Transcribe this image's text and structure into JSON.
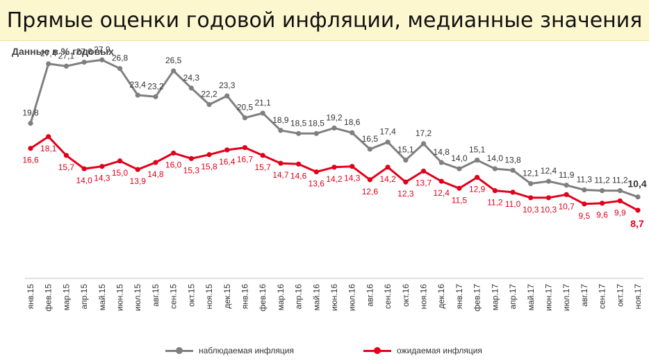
{
  "title": "Прямые оценки годовой инфляции, медианные значения",
  "units_label": "Данные в % годовых",
  "colors": {
    "observed": "#7f7f7f",
    "expected": "#e1001a",
    "axis": "#bfbfbf",
    "title_bg": "#fdf7cf"
  },
  "legend": {
    "observed": "наблюдаемая инфляция",
    "expected": "ожидаемая инфляция"
  },
  "chart_data": {
    "type": "line",
    "legend_position": "bottom",
    "grid": false,
    "ylim": [
      0,
      32
    ],
    "categories": [
      "янв.15",
      "фев.15",
      "мар.15",
      "апр.15",
      "май.15",
      "июн.15",
      "июл.15",
      "авг.15",
      "сен.15",
      "окт.15",
      "ноя.15",
      "дек.15",
      "янв.16",
      "фев.16",
      "мар.16",
      "апр.16",
      "май.16",
      "июн.16",
      "июл.16",
      "авг.16",
      "сен.16",
      "окт.16",
      "ноя.16",
      "дек.16",
      "янв.17",
      "фев.17",
      "мар.17",
      "апр.17",
      "май.17",
      "июн.17",
      "июл.17",
      "авг.17",
      "сен.17",
      "окт.17",
      "ноя.17"
    ],
    "series": [
      {
        "name": "наблюдаемая инфляция",
        "color": "#7f7f7f",
        "values": [
          19.8,
          27.4,
          27.1,
          27.6,
          27.9,
          26.8,
          23.4,
          23.2,
          26.5,
          24.3,
          22.2,
          23.3,
          20.5,
          21.1,
          18.9,
          18.5,
          18.5,
          19.2,
          18.6,
          16.5,
          17.4,
          15.1,
          17.2,
          14.8,
          14.0,
          15.1,
          14.0,
          13.8,
          12.1,
          12.4,
          11.9,
          11.3,
          11.2,
          11.2,
          10.4
        ],
        "labels": [
          "19,8",
          "27,4",
          "27,1",
          "27,6",
          "27,9",
          "26,8",
          "23,4",
          "23,2",
          "26,5",
          "24,3",
          "22,2",
          "23,3",
          "20,5",
          "21,1",
          "18,9",
          "18,5",
          "18,5",
          "19,2",
          "18,6",
          "16,5",
          "17,4",
          "15,1",
          "17,2",
          "14,8",
          "14,0",
          "15,1",
          "14,0",
          "13,8",
          "12,1",
          "12,4",
          "11,9",
          "11,3",
          "11,2",
          "11,2",
          "10,4"
        ]
      },
      {
        "name": "ожидаемая инфляция",
        "color": "#e1001a",
        "values": [
          16.6,
          18.1,
          15.7,
          14.0,
          14.3,
          15.0,
          13.9,
          14.8,
          16.0,
          15.3,
          15.8,
          16.4,
          16.7,
          15.7,
          14.7,
          14.6,
          13.6,
          14.2,
          14.3,
          12.6,
          14.2,
          12.3,
          13.7,
          12.4,
          11.5,
          12.9,
          11.2,
          11.0,
          10.3,
          10.3,
          10.7,
          9.5,
          9.6,
          9.9,
          8.7
        ],
        "labels": [
          "16,6",
          "18,1",
          "15,7",
          "14,0",
          "14,3",
          "15,0",
          "13,9",
          "14,8",
          "16,0",
          "15,3",
          "15,8",
          "16,4",
          "16,7",
          "15,7",
          "14,7",
          "14,6",
          "13,6",
          "14,2",
          "14,3",
          "12,6",
          "14,2",
          "12,3",
          "13,7",
          "12,4",
          "11,5",
          "12,9",
          "11,2",
          "11,0",
          "10,3",
          "10,3",
          "10,7",
          "9,5",
          "9,6",
          "9,9",
          "8,7"
        ]
      }
    ]
  }
}
